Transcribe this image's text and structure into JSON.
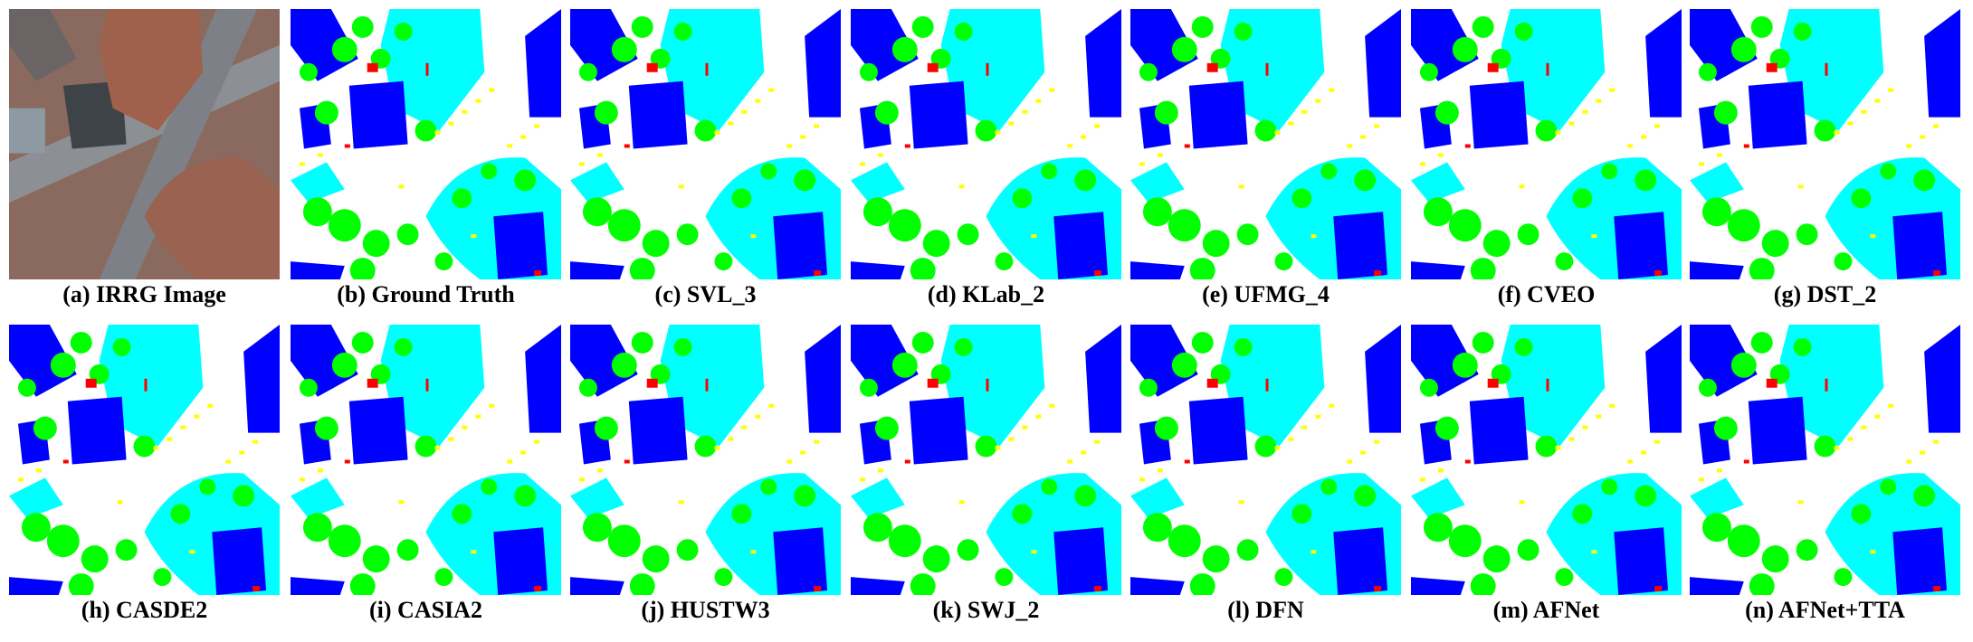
{
  "panels": [
    {
      "label": "(a) IRRG Image"
    },
    {
      "label": "(b) Ground Truth"
    },
    {
      "label": "(c) SVL_3"
    },
    {
      "label": "(d) KLab_2"
    },
    {
      "label": "(e) UFMG_4"
    },
    {
      "label": "(f) CVEO"
    },
    {
      "label": "(g) DST_2"
    },
    {
      "label": "(h) CASDE2"
    },
    {
      "label": "(i) CASIA2"
    },
    {
      "label": "(j) HUSTW3"
    },
    {
      "label": "(k) SWJ_2"
    },
    {
      "label": "(l) DFN"
    },
    {
      "label": "(m) AFNet"
    },
    {
      "label": "(n) AFNet+TTA"
    }
  ]
}
